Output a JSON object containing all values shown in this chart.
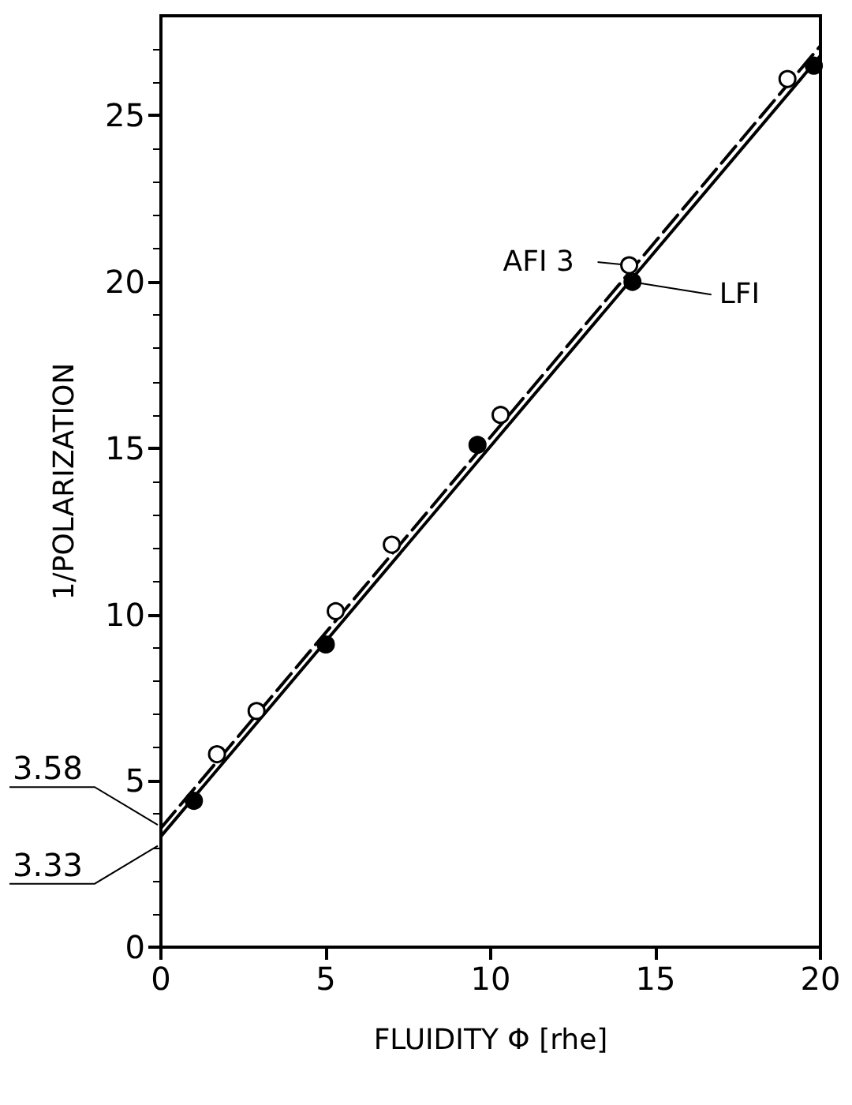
{
  "chart_data": {
    "type": "scatter",
    "xlabel": "FLUIDITY Φ [rhe]",
    "ylabel": "1/POLARIZATION",
    "xlim": [
      0,
      20
    ],
    "xticks": [
      0,
      5,
      10,
      15,
      20
    ],
    "ylim": [
      0,
      28
    ],
    "yticks": [
      0,
      5,
      10,
      15,
      20,
      25
    ],
    "grid": false,
    "annotations": [
      {
        "text": "3.58",
        "x": 0,
        "y": 3.58
      },
      {
        "text": "3.33",
        "x": 0,
        "y": 3.33
      }
    ],
    "series": [
      {
        "name": "AFI 3",
        "color": "#ffffff",
        "marker": "circle",
        "x": [
          1.7,
          2.9,
          5.3,
          7.0,
          10.3,
          14.2,
          19.0
        ],
        "values": [
          5.8,
          7.1,
          10.1,
          12.1,
          16.0,
          20.5,
          26.1
        ]
      },
      {
        "name": "LFI",
        "color": "#000000",
        "marker": "circle",
        "x": [
          1.0,
          5.0,
          9.6,
          14.3,
          19.8
        ],
        "values": [
          4.4,
          9.1,
          15.1,
          20.0,
          26.5
        ]
      },
      {
        "type": "line",
        "color": "#000000",
        "line_style": "dashed",
        "marker": "none",
        "x": [
          0,
          20
        ],
        "values": [
          3.58,
          27.1
        ]
      },
      {
        "type": "line",
        "color": "#000000",
        "line_style": "solid",
        "marker": "none",
        "x": [
          0,
          20
        ],
        "values": [
          3.33,
          26.8
        ]
      }
    ]
  }
}
